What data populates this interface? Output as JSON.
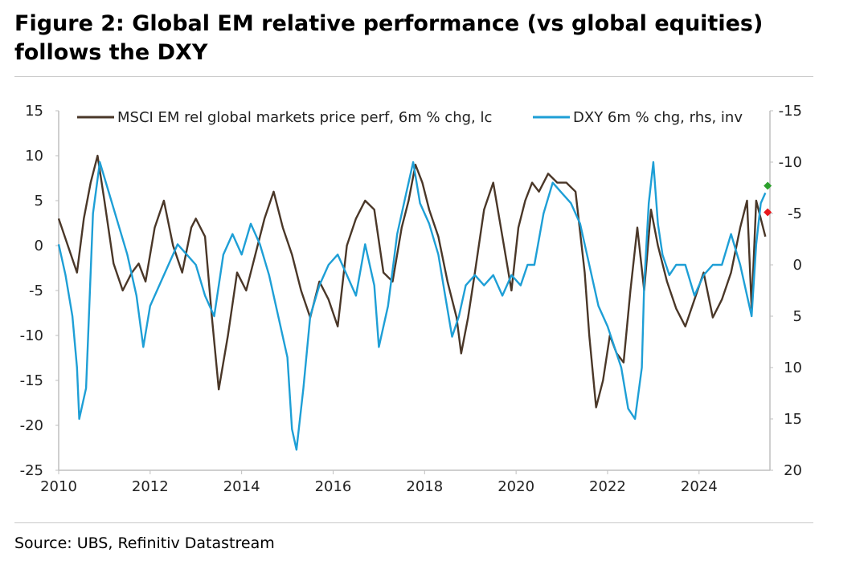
{
  "title": "Figure 2: Global EM relative performance (vs global equities) follows the DXY",
  "source": "Source: UBS, Refinitiv Datastream",
  "colors": {
    "em": "#4a3728",
    "dxy": "#1e9fd6",
    "marker_green": "#2ca02c",
    "marker_red": "#e8171b",
    "axis": "#bfbfbf"
  },
  "chart_data": {
    "type": "line",
    "x_ticks": [
      "2010",
      "2012",
      "2014",
      "2016",
      "2018",
      "2020",
      "2022",
      "2024"
    ],
    "x_range": [
      2010,
      2025.55
    ],
    "y_left": {
      "range": [
        -25,
        15
      ],
      "ticks": [
        "15",
        "10",
        "5",
        "0",
        "-5",
        "-10",
        "-15",
        "-20",
        "-25"
      ]
    },
    "y_right": {
      "range": [
        -15,
        20
      ],
      "inverted": true,
      "ticks": [
        "-15",
        "-10",
        "-5",
        "0",
        "5",
        "10",
        "15",
        "20"
      ]
    },
    "series": [
      {
        "name": "MSCI EM rel global markets price perf, 6m % chg, lc",
        "axis": "left",
        "x": [
          2010.0,
          2010.2,
          2010.4,
          2010.55,
          2010.7,
          2010.85,
          2011.0,
          2011.2,
          2011.4,
          2011.6,
          2011.75,
          2011.9,
          2012.1,
          2012.3,
          2012.5,
          2012.7,
          2012.9,
          2013.0,
          2013.2,
          2013.35,
          2013.5,
          2013.7,
          2013.9,
          2014.1,
          2014.3,
          2014.5,
          2014.7,
          2014.9,
          2015.1,
          2015.3,
          2015.5,
          2015.7,
          2015.9,
          2016.1,
          2016.3,
          2016.5,
          2016.7,
          2016.9,
          2017.1,
          2017.3,
          2017.5,
          2017.65,
          2017.8,
          2017.95,
          2018.1,
          2018.3,
          2018.5,
          2018.7,
          2018.8,
          2018.95,
          2019.1,
          2019.3,
          2019.5,
          2019.7,
          2019.9,
          2020.05,
          2020.2,
          2020.35,
          2020.5,
          2020.7,
          2020.9,
          2021.1,
          2021.3,
          2021.5,
          2021.6,
          2021.75,
          2021.9,
          2022.05,
          2022.2,
          2022.35,
          2022.5,
          2022.65,
          2022.8,
          2022.95,
          2023.1,
          2023.3,
          2023.5,
          2023.7,
          2023.9,
          2024.1,
          2024.3,
          2024.5,
          2024.7,
          2024.9,
          2025.05,
          2025.15,
          2025.25,
          2025.35,
          2025.45
        ],
        "y": [
          3,
          0,
          -3,
          3,
          7,
          10,
          5,
          -2,
          -5,
          -3,
          -2,
          -4,
          2,
          5,
          0,
          -3,
          2,
          3,
          1,
          -8,
          -16,
          -10,
          -3,
          -5,
          -1,
          3,
          6,
          2,
          -1,
          -5,
          -8,
          -4,
          -6,
          -9,
          0,
          3,
          5,
          4,
          -3,
          -4,
          2,
          5,
          9,
          7,
          4,
          1,
          -4,
          -8,
          -12,
          -8,
          -3,
          4,
          7,
          1,
          -5,
          2,
          5,
          7,
          6,
          8,
          7,
          7,
          6,
          -3,
          -10,
          -18,
          -15,
          -10,
          -12,
          -13,
          -5,
          2,
          -5,
          4,
          0,
          -4,
          -7,
          -9,
          -6,
          -3,
          -8,
          -6,
          -3,
          2,
          5,
          -7,
          5,
          3,
          1
        ]
      },
      {
        "name": "DXY 6m % chg, rhs, inv",
        "axis": "right",
        "x": [
          2010.0,
          2010.15,
          2010.3,
          2010.4,
          2010.45,
          2010.6,
          2010.75,
          2010.9,
          2011.1,
          2011.3,
          2011.5,
          2011.7,
          2011.85,
          2012.0,
          2012.2,
          2012.4,
          2012.6,
          2012.8,
          2013.0,
          2013.2,
          2013.4,
          2013.6,
          2013.8,
          2014.0,
          2014.2,
          2014.4,
          2014.6,
          2014.8,
          2015.0,
          2015.1,
          2015.2,
          2015.35,
          2015.5,
          2015.7,
          2015.9,
          2016.1,
          2016.3,
          2016.5,
          2016.7,
          2016.9,
          2017.0,
          2017.2,
          2017.4,
          2017.6,
          2017.75,
          2017.9,
          2018.1,
          2018.3,
          2018.45,
          2018.6,
          2018.75,
          2018.9,
          2019.1,
          2019.3,
          2019.5,
          2019.7,
          2019.9,
          2020.1,
          2020.25,
          2020.4,
          2020.6,
          2020.8,
          2021.0,
          2021.2,
          2021.4,
          2021.6,
          2021.8,
          2022.0,
          2022.15,
          2022.3,
          2022.45,
          2022.6,
          2022.75,
          2022.8,
          2022.9,
          2023.0,
          2023.1,
          2023.2,
          2023.35,
          2023.5,
          2023.7,
          2023.9,
          2024.1,
          2024.3,
          2024.5,
          2024.7,
          2024.9,
          2025.05,
          2025.15,
          2025.25,
          2025.35,
          2025.45
        ],
        "y": [
          -2,
          1,
          5,
          10,
          15,
          12,
          -5,
          -10,
          -7,
          -4,
          -1,
          3,
          8,
          4,
          2,
          0,
          -2,
          -1,
          0,
          3,
          5,
          -1,
          -3,
          -1,
          -4,
          -2,
          1,
          5,
          9,
          16,
          18,
          12,
          5,
          2,
          0,
          -1,
          1,
          3,
          -2,
          2,
          8,
          4,
          -3,
          -7,
          -10,
          -6,
          -4,
          -1,
          3,
          7,
          5,
          2,
          1,
          2,
          1,
          3,
          1,
          2,
          0,
          0,
          -5,
          -8,
          -7,
          -6,
          -4,
          0,
          4,
          6,
          8,
          10,
          14,
          15,
          10,
          2,
          -6,
          -10,
          -4,
          -1,
          1,
          0,
          0,
          3,
          1,
          0,
          0,
          -3,
          0,
          3,
          5,
          -2,
          -6,
          -7
        ]
      }
    ],
    "end_markers": [
      {
        "series": "MSCI EM rel global markets price perf, 6m % chg, lc",
        "axis": "left",
        "x": 2025.5,
        "y": 3.7,
        "color": "#e8171b"
      },
      {
        "series": "DXY 6m % chg, rhs, inv",
        "axis": "right",
        "x": 2025.5,
        "y": -7.7,
        "color": "#2ca02c"
      }
    ],
    "grid": false,
    "legend": "top"
  }
}
